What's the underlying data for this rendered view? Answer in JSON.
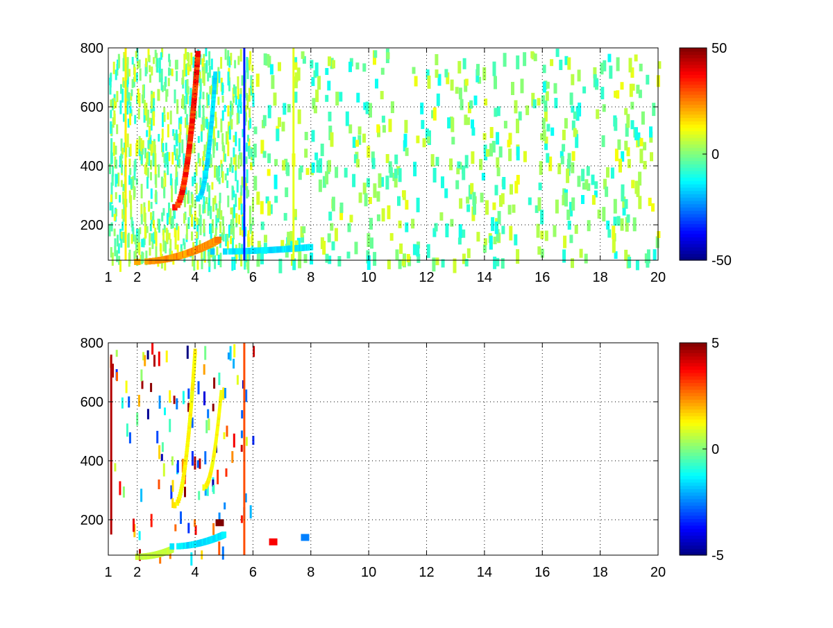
{
  "chart_data": [
    {
      "type": "heatmap",
      "title": "",
      "xlabel": "",
      "ylabel": "",
      "xlim": [
        1,
        20
      ],
      "ylim": [
        80,
        800
      ],
      "grid": true,
      "x_ticks": [
        1,
        2,
        4,
        6,
        8,
        10,
        12,
        14,
        16,
        18,
        20
      ],
      "y_ticks": [
        200,
        400,
        600,
        800
      ],
      "colormap": "jet",
      "colorbar": {
        "range": [
          -50,
          50
        ],
        "tick_labels": [
          "50",
          "0",
          "-50"
        ]
      },
      "features": [
        {
          "shape": "curve",
          "from": [
            3.3,
            270
          ],
          "to": [
            4.1,
            790
          ],
          "value": 40,
          "width": 0.18
        },
        {
          "shape": "curve",
          "from": [
            4.1,
            300
          ],
          "to": [
            4.7,
            720
          ],
          "value": -18,
          "width": 0.14
        },
        {
          "shape": "curve",
          "from": [
            2.0,
            85
          ],
          "to": [
            4.8,
            160
          ],
          "value": 28,
          "width": 0.22
        },
        {
          "shape": "curve",
          "from": [
            4.6,
            120
          ],
          "to": [
            8.0,
            135
          ],
          "value": -18,
          "width": 0.16
        },
        {
          "shape": "vline",
          "x": 5.7,
          "y": [
            80,
            800
          ],
          "value": -35
        },
        {
          "shape": "vline",
          "x": 1.6,
          "y": [
            80,
            800
          ],
          "value": 14
        },
        {
          "shape": "vline",
          "x": 7.4,
          "y": [
            80,
            800
          ],
          "value": 10
        }
      ],
      "noise": {
        "x_range": [
          1,
          20
        ],
        "value_range": [
          -12,
          12
        ],
        "density": "high for x<6, sparse for x>6"
      }
    },
    {
      "type": "heatmap",
      "title": "",
      "xlabel": "",
      "ylabel": "",
      "xlim": [
        1,
        20
      ],
      "ylim": [
        80,
        800
      ],
      "grid": true,
      "x_ticks": [
        1,
        2,
        4,
        6,
        8,
        10,
        12,
        14,
        16,
        18,
        20
      ],
      "y_ticks": [
        200,
        400,
        600,
        800
      ],
      "colormap": "jet",
      "colorbar": {
        "range": [
          -5,
          5
        ],
        "tick_labels": [
          "5",
          "0",
          "-5"
        ]
      },
      "features": [
        {
          "shape": "curve",
          "from": [
            3.3,
            260
          ],
          "to": [
            4.0,
            780
          ],
          "value": 1.5,
          "width": 0.12
        },
        {
          "shape": "curve",
          "from": [
            4.3,
            320
          ],
          "to": [
            4.9,
            640
          ],
          "value": 1.5,
          "width": 0.1
        },
        {
          "shape": "curve",
          "from": [
            2.0,
            85
          ],
          "to": [
            3.2,
            110
          ],
          "value": 0.8,
          "width": 0.14
        },
        {
          "shape": "curve",
          "from": [
            3.2,
            120
          ],
          "to": [
            5.0,
            160
          ],
          "value": -1.8,
          "width": 0.16
        },
        {
          "shape": "blob",
          "x": 4.85,
          "y": 190,
          "value": 5
        },
        {
          "shape": "blob",
          "x": 6.7,
          "y": 125,
          "value": 3.8
        },
        {
          "shape": "blob",
          "x": 7.8,
          "y": 140,
          "value": -2.5
        },
        {
          "shape": "vline",
          "x": 5.7,
          "y": [
            80,
            800
          ],
          "value": 3
        },
        {
          "shape": "vline",
          "x": 1.1,
          "y": [
            150,
            760
          ],
          "value": 4.5
        }
      ],
      "noise": {
        "x_range": [
          1,
          6
        ],
        "value_range": [
          -5,
          5
        ],
        "density": "sparse"
      }
    }
  ]
}
